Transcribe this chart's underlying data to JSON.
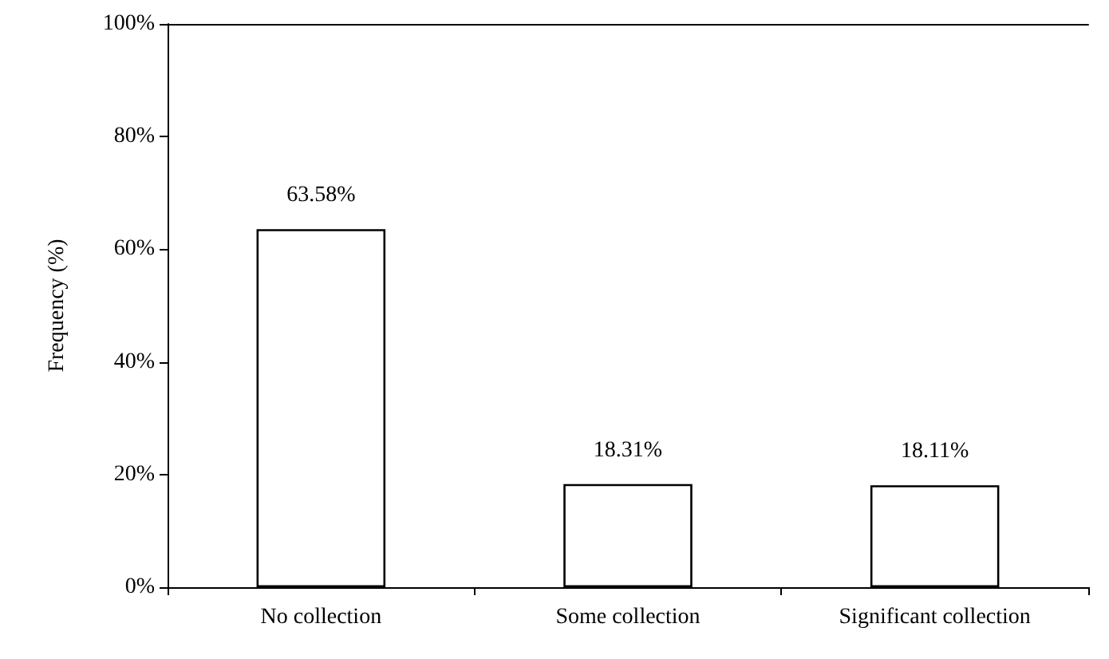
{
  "chart_data": {
    "type": "bar",
    "ylabel": "Frequency (%)",
    "categories": [
      "No collection",
      "Some collection",
      "Significant collection"
    ],
    "values": [
      63.58,
      18.31,
      18.11
    ],
    "value_labels": [
      "63.58%",
      "18.31%",
      "18.11%"
    ],
    "color": "#ffffff",
    "ylim": [
      0,
      100
    ],
    "yticks": [
      {
        "value": 0,
        "label": "0%"
      },
      {
        "value": 20,
        "label": "20%"
      },
      {
        "value": 40,
        "label": "40%"
      },
      {
        "value": 60,
        "label": "60%"
      },
      {
        "value": 80,
        "label": "80%"
      },
      {
        "value": 100,
        "label": "100%"
      }
    ],
    "grid": false
  }
}
